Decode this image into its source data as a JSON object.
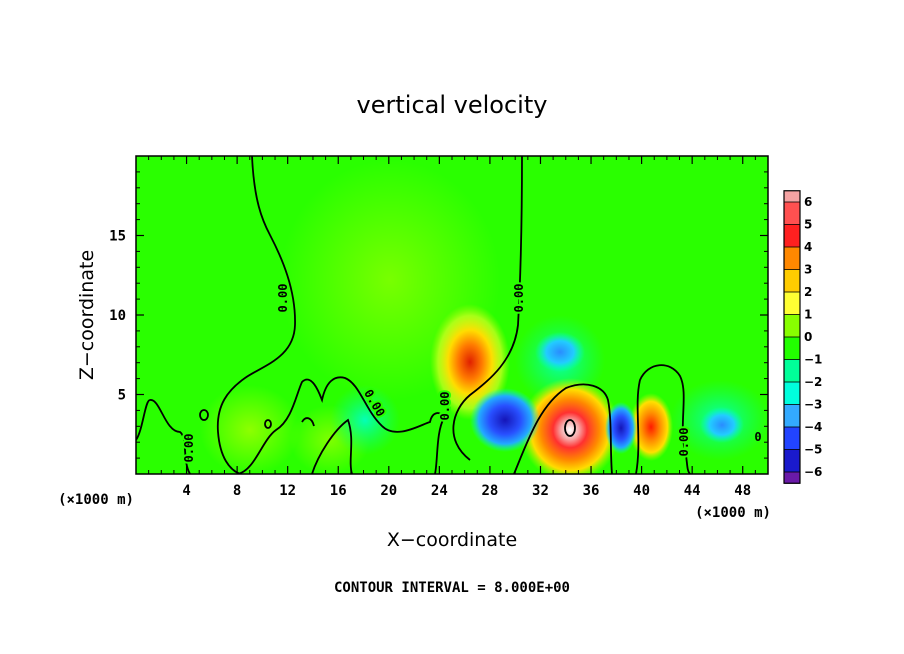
{
  "chart_data": {
    "type": "heatmap",
    "title": "vertical velocity",
    "xlabel": "X−coordinate",
    "ylabel": "Z−coordinate",
    "x_unit": "(×1000 m)",
    "x_unit_right": "(×1000 m)",
    "xlim": [
      0,
      50
    ],
    "ylim": [
      0,
      20
    ],
    "x_ticks": [
      4,
      8,
      12,
      16,
      20,
      24,
      28,
      32,
      36,
      40,
      44,
      48
    ],
    "y_ticks": [
      5,
      10,
      15
    ],
    "note": "CONTOUR INTERVAL = 8.000E+00",
    "colorbar": {
      "levels": [
        6,
        5,
        4,
        3,
        2,
        1,
        0,
        -1,
        -2,
        -3,
        -4,
        -5,
        -6
      ],
      "tick_labels": [
        "6",
        "5",
        "4",
        "3",
        "2",
        "1",
        "0",
        "−1",
        "−2",
        "−3",
        "−4",
        "−5",
        "−6"
      ],
      "colors": [
        "#f5a3a3",
        "#ff5050",
        "#ff2020",
        "#ff8800",
        "#ffcc00",
        "#ffff33",
        "#88ff00",
        "#22ff00",
        "#00ff99",
        "#00ffdd",
        "#33aaff",
        "#2244ff",
        "#1a1acc",
        "#6a1aa8"
      ]
    },
    "contour_labels": [
      "0.00",
      "0.00",
      "0.00",
      "0.00",
      "0.00",
      "0.00",
      "0"
    ],
    "features": [
      {
        "name": "updraft",
        "x": 26.5,
        "z": 7,
        "value": 3.5
      },
      {
        "name": "updraft",
        "x": 34,
        "z": 3,
        "value": 6.5
      },
      {
        "name": "updraft",
        "x": 40.8,
        "z": 3,
        "value": 3.5
      },
      {
        "name": "updraft",
        "x": 8,
        "z": 2.5,
        "value": 1.2
      },
      {
        "name": "downdraft",
        "x": 29.5,
        "z": 3.5,
        "value": -4.5
      },
      {
        "name": "downdraft",
        "x": 38.5,
        "z": 3,
        "value": -4
      },
      {
        "name": "downdraft",
        "x": 33,
        "z": 8,
        "value": -2.5
      },
      {
        "name": "downdraft",
        "x": 46.5,
        "z": 3,
        "value": -2.5
      },
      {
        "name": "downdraft",
        "x": 17.5,
        "z": 4,
        "value": -1.2
      }
    ]
  }
}
